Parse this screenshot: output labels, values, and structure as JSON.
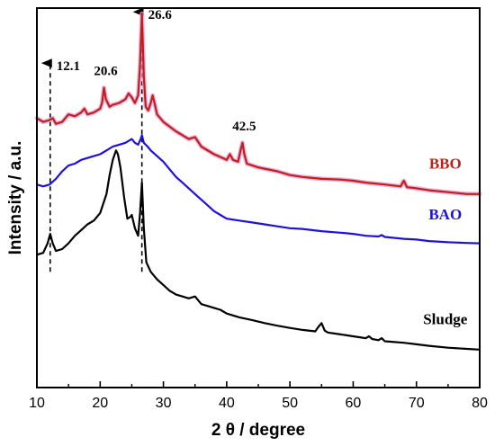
{
  "chart_data": {
    "type": "line",
    "title": "",
    "xlabel": "2 θ / degree",
    "ylabel": "Intensity / a.u.",
    "xlim": [
      10,
      80
    ],
    "x_ticks": [
      10,
      20,
      30,
      40,
      50,
      60,
      70,
      80
    ],
    "y_ticks_shown": false,
    "grid": false,
    "legend": "none",
    "series": [
      {
        "name": "BBO",
        "color": "#c0201a",
        "glow": "#e59ad6",
        "label_x": 72,
        "points": [
          [
            10,
            0.71
          ],
          [
            11,
            0.7
          ],
          [
            12,
            0.705
          ],
          [
            12.5,
            0.71
          ],
          [
            13,
            0.695
          ],
          [
            14,
            0.7
          ],
          [
            15,
            0.72
          ],
          [
            16,
            0.715
          ],
          [
            17,
            0.725
          ],
          [
            17.5,
            0.735
          ],
          [
            18,
            0.72
          ],
          [
            19,
            0.725
          ],
          [
            20,
            0.735
          ],
          [
            20.3,
            0.75
          ],
          [
            20.6,
            0.79
          ],
          [
            20.9,
            0.76
          ],
          [
            21.5,
            0.74
          ],
          [
            22,
            0.745
          ],
          [
            23,
            0.75
          ],
          [
            24,
            0.76
          ],
          [
            24.5,
            0.775
          ],
          [
            25,
            0.765
          ],
          [
            25.5,
            0.75
          ],
          [
            26,
            0.77
          ],
          [
            26.3,
            0.85
          ],
          [
            26.6,
            0.985
          ],
          [
            26.9,
            0.82
          ],
          [
            27.2,
            0.74
          ],
          [
            27.6,
            0.73
          ],
          [
            28,
            0.75
          ],
          [
            28.3,
            0.77
          ],
          [
            28.6,
            0.75
          ],
          [
            29,
            0.72
          ],
          [
            30,
            0.7
          ],
          [
            32,
            0.675
          ],
          [
            34,
            0.655
          ],
          [
            35,
            0.66
          ],
          [
            36,
            0.635
          ],
          [
            38,
            0.615
          ],
          [
            40,
            0.6
          ],
          [
            40.5,
            0.615
          ],
          [
            41,
            0.6
          ],
          [
            41.8,
            0.595
          ],
          [
            42.2,
            0.625
          ],
          [
            42.5,
            0.645
          ],
          [
            42.8,
            0.615
          ],
          [
            43.2,
            0.59
          ],
          [
            45,
            0.58
          ],
          [
            48,
            0.57
          ],
          [
            50,
            0.56
          ],
          [
            52,
            0.555
          ],
          [
            55,
            0.55
          ],
          [
            58,
            0.548
          ],
          [
            60,
            0.545
          ],
          [
            62,
            0.54
          ],
          [
            65,
            0.535
          ],
          [
            67.5,
            0.53
          ],
          [
            68,
            0.545
          ],
          [
            68.5,
            0.528
          ],
          [
            70,
            0.525
          ],
          [
            72,
            0.52
          ],
          [
            75,
            0.515
          ],
          [
            78,
            0.51
          ],
          [
            80,
            0.51
          ]
        ]
      },
      {
        "name": "BAO",
        "color": "#1f10e0",
        "label_x": 72,
        "points": [
          [
            10,
            0.535
          ],
          [
            11,
            0.53
          ],
          [
            12,
            0.535
          ],
          [
            13,
            0.55
          ],
          [
            14,
            0.57
          ],
          [
            15,
            0.585
          ],
          [
            16,
            0.59
          ],
          [
            17,
            0.6
          ],
          [
            18,
            0.605
          ],
          [
            19,
            0.61
          ],
          [
            20,
            0.615
          ],
          [
            21,
            0.625
          ],
          [
            22,
            0.635
          ],
          [
            23,
            0.64
          ],
          [
            24,
            0.645
          ],
          [
            24.5,
            0.65
          ],
          [
            25,
            0.655
          ],
          [
            25.5,
            0.645
          ],
          [
            26,
            0.64
          ],
          [
            26.4,
            0.655
          ],
          [
            26.6,
            0.665
          ],
          [
            26.9,
            0.645
          ],
          [
            27.5,
            0.635
          ],
          [
            28,
            0.625
          ],
          [
            29,
            0.61
          ],
          [
            30,
            0.595
          ],
          [
            31,
            0.575
          ],
          [
            32,
            0.555
          ],
          [
            33,
            0.54
          ],
          [
            34,
            0.525
          ],
          [
            35,
            0.51
          ],
          [
            36,
            0.495
          ],
          [
            37,
            0.48
          ],
          [
            38,
            0.465
          ],
          [
            39,
            0.455
          ],
          [
            40,
            0.445
          ],
          [
            42,
            0.44
          ],
          [
            44,
            0.435
          ],
          [
            46,
            0.43
          ],
          [
            48,
            0.425
          ],
          [
            50,
            0.42
          ],
          [
            52,
            0.418
          ],
          [
            55,
            0.412
          ],
          [
            58,
            0.408
          ],
          [
            60,
            0.405
          ],
          [
            62,
            0.4
          ],
          [
            64,
            0.398
          ],
          [
            64.5,
            0.402
          ],
          [
            65,
            0.397
          ],
          [
            68,
            0.392
          ],
          [
            70,
            0.39
          ],
          [
            72,
            0.386
          ],
          [
            75,
            0.383
          ],
          [
            78,
            0.381
          ],
          [
            80,
            0.38
          ]
        ]
      },
      {
        "name": "Sludge",
        "color": "#000000",
        "label_x": 72,
        "points": [
          [
            10,
            0.35
          ],
          [
            11,
            0.355
          ],
          [
            11.7,
            0.38
          ],
          [
            12.1,
            0.405
          ],
          [
            12.5,
            0.38
          ],
          [
            13,
            0.36
          ],
          [
            14,
            0.365
          ],
          [
            15,
            0.38
          ],
          [
            16,
            0.4
          ],
          [
            17,
            0.415
          ],
          [
            18,
            0.43
          ],
          [
            19,
            0.44
          ],
          [
            19.5,
            0.45
          ],
          [
            20,
            0.46
          ],
          [
            21,
            0.51
          ],
          [
            21.5,
            0.56
          ],
          [
            22,
            0.6
          ],
          [
            22.5,
            0.625
          ],
          [
            22.8,
            0.615
          ],
          [
            23.2,
            0.58
          ],
          [
            23.8,
            0.5
          ],
          [
            24.3,
            0.445
          ],
          [
            24.8,
            0.45
          ],
          [
            25,
            0.455
          ],
          [
            25.5,
            0.42
          ],
          [
            26,
            0.4
          ],
          [
            26.3,
            0.46
          ],
          [
            26.6,
            0.54
          ],
          [
            26.9,
            0.42
          ],
          [
            27.3,
            0.33
          ],
          [
            28,
            0.305
          ],
          [
            29,
            0.285
          ],
          [
            30,
            0.27
          ],
          [
            31,
            0.255
          ],
          [
            32,
            0.245
          ],
          [
            33,
            0.24
          ],
          [
            34,
            0.235
          ],
          [
            35,
            0.24
          ],
          [
            36,
            0.22
          ],
          [
            38,
            0.21
          ],
          [
            39,
            0.205
          ],
          [
            40,
            0.195
          ],
          [
            42,
            0.185
          ],
          [
            44,
            0.178
          ],
          [
            46,
            0.17
          ],
          [
            48,
            0.163
          ],
          [
            50,
            0.157
          ],
          [
            52,
            0.152
          ],
          [
            54,
            0.148
          ],
          [
            54.5,
            0.16
          ],
          [
            55,
            0.17
          ],
          [
            55.5,
            0.15
          ],
          [
            56,
            0.145
          ],
          [
            58,
            0.14
          ],
          [
            60,
            0.135
          ],
          [
            62,
            0.13
          ],
          [
            62.5,
            0.135
          ],
          [
            63,
            0.128
          ],
          [
            64,
            0.125
          ],
          [
            64.5,
            0.13
          ],
          [
            65,
            0.122
          ],
          [
            68,
            0.118
          ],
          [
            70,
            0.114
          ],
          [
            72,
            0.11
          ],
          [
            75,
            0.105
          ],
          [
            78,
            0.102
          ],
          [
            80,
            0.1
          ]
        ]
      }
    ],
    "reference_lines": [
      {
        "x": 12.1,
        "label": "12.1"
      },
      {
        "x": 26.6,
        "label": "26.6"
      }
    ],
    "annotations": [
      {
        "x": 20.6,
        "text": "20.6"
      },
      {
        "x": 42.5,
        "text": "42.5"
      }
    ]
  }
}
